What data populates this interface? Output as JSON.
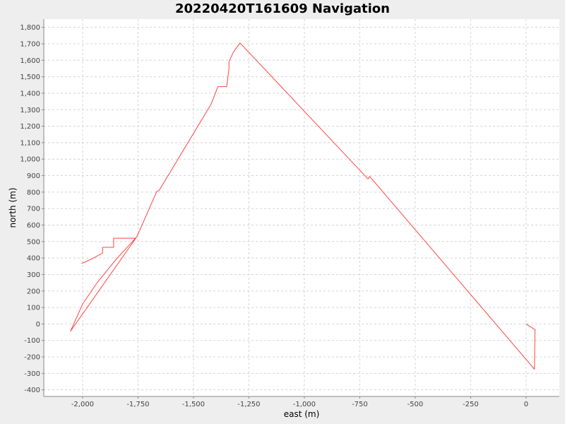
{
  "chart_data": {
    "type": "line",
    "title": "20220420T161609 Navigation",
    "xlabel": "east (m)",
    "ylabel": "north (m)",
    "xlim": [
      -2175,
      150
    ],
    "ylim": [
      -440,
      1850
    ],
    "grid": true,
    "x_ticks": [
      -2000,
      -1750,
      -1500,
      -1250,
      -1000,
      -750,
      -500,
      -250,
      0
    ],
    "x_tick_labels": [
      "-2,000",
      "-1,750",
      "-1,500",
      "-1,250",
      "-1,000",
      "-750",
      "-500",
      "-250",
      "0"
    ],
    "y_ticks": [
      -400,
      -300,
      -200,
      -100,
      0,
      100,
      200,
      300,
      400,
      500,
      600,
      700,
      800,
      900,
      1000,
      1100,
      1200,
      1300,
      1400,
      1500,
      1600,
      1700,
      1800
    ],
    "y_tick_labels": [
      "-400",
      "-300",
      "-200",
      "-100",
      "0",
      "100",
      "200",
      "300",
      "400",
      "500",
      "600",
      "700",
      "800",
      "900",
      "1,000",
      "1,100",
      "1,200",
      "1,300",
      "1,400",
      "1,500",
      "1,600",
      "1,700",
      "1,800"
    ],
    "series": [
      {
        "color": "#ff4444",
        "x": [
          0,
          40,
          38,
          -705,
          -710,
          -713,
          -1290,
          -1320,
          -1340,
          -1340,
          -1350,
          -1390,
          -1420,
          -1655,
          -1665,
          -1755,
          -1850,
          -1935,
          -1965,
          -2000,
          -2055,
          -1760,
          -1860,
          -1860,
          -1910,
          -1910,
          -1950,
          -1990,
          -2005
        ],
        "y": [
          0,
          -35,
          -275,
          895,
          885,
          880,
          1705,
          1650,
          1590,
          1550,
          1440,
          1440,
          1335,
          810,
          805,
          530,
          390,
          250,
          190,
          120,
          -45,
          520,
          520,
          465,
          465,
          430,
          400,
          375,
          368
        ]
      }
    ]
  }
}
